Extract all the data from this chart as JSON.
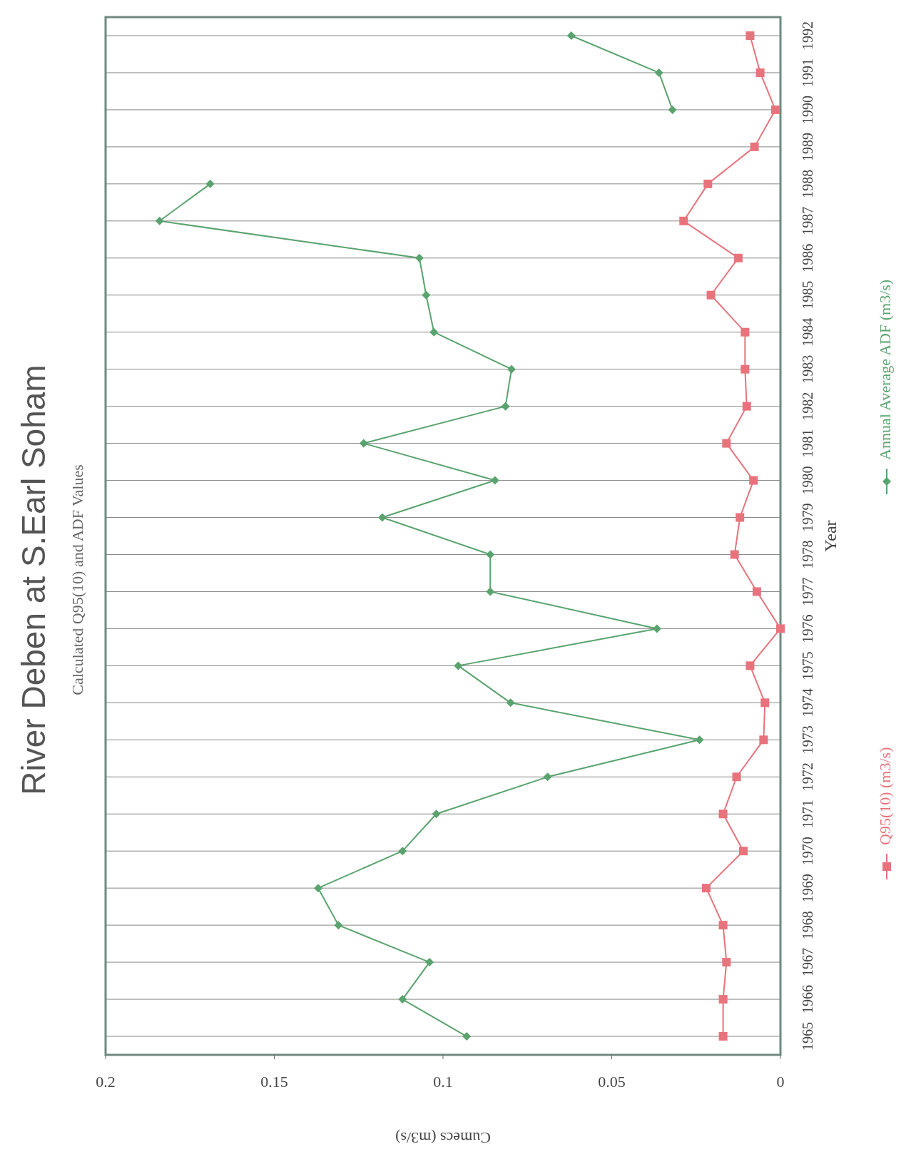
{
  "chart_data": {
    "type": "line",
    "orientation": "horizontal",
    "title": "River Deben at S.Earl Soham",
    "subtitle": "Calculated Q95(10) and ADF Values",
    "xlabel": "Cumecs (m3/s)",
    "ylabel": "Year",
    "categories": [
      "1992",
      "1991",
      "1990",
      "1989",
      "1988",
      "1987",
      "1986",
      "1985",
      "1984",
      "1983",
      "1982",
      "1981",
      "1980",
      "1979",
      "1978",
      "1977",
      "1976",
      "1975",
      "1974",
      "1973",
      "1972",
      "1971",
      "1970",
      "1969",
      "1968",
      "1967",
      "1966",
      "1965"
    ],
    "series": [
      {
        "name": "Q95(10) (m3/s)",
        "color": "#e8737c",
        "marker": "square",
        "values": [
          0.009,
          0.006,
          0.0015,
          0.0077,
          0.0215,
          0.0287,
          0.0125,
          0.0206,
          0.0105,
          0.0105,
          0.01,
          0.016,
          0.008,
          0.012,
          0.0136,
          0.007,
          0,
          0.009,
          0.0046,
          0.005,
          0.013,
          0.017,
          0.011,
          0.022,
          0.017,
          0.016,
          0.017,
          0.017
        ]
      },
      {
        "name": "Annual Average ADF (m3/s)",
        "color": "#5aa36e",
        "marker": "diamond",
        "values": [
          0.062,
          0.036,
          0.032,
          null,
          0.169,
          0.184,
          0.107,
          0.105,
          0.1027,
          0.0797,
          0.0815,
          0.1235,
          0.0846,
          0.118,
          0.086,
          0.086,
          0.0366,
          0.0955,
          0.08,
          0.024,
          0.069,
          0.102,
          0.112,
          0.137,
          0.131,
          0.104,
          0.112,
          0.093
        ]
      }
    ],
    "xlim": [
      0.2,
      0
    ],
    "xticks": [
      0.2,
      0.15,
      0.1,
      0.05,
      0
    ],
    "grid": "y",
    "legend": "bottom"
  }
}
